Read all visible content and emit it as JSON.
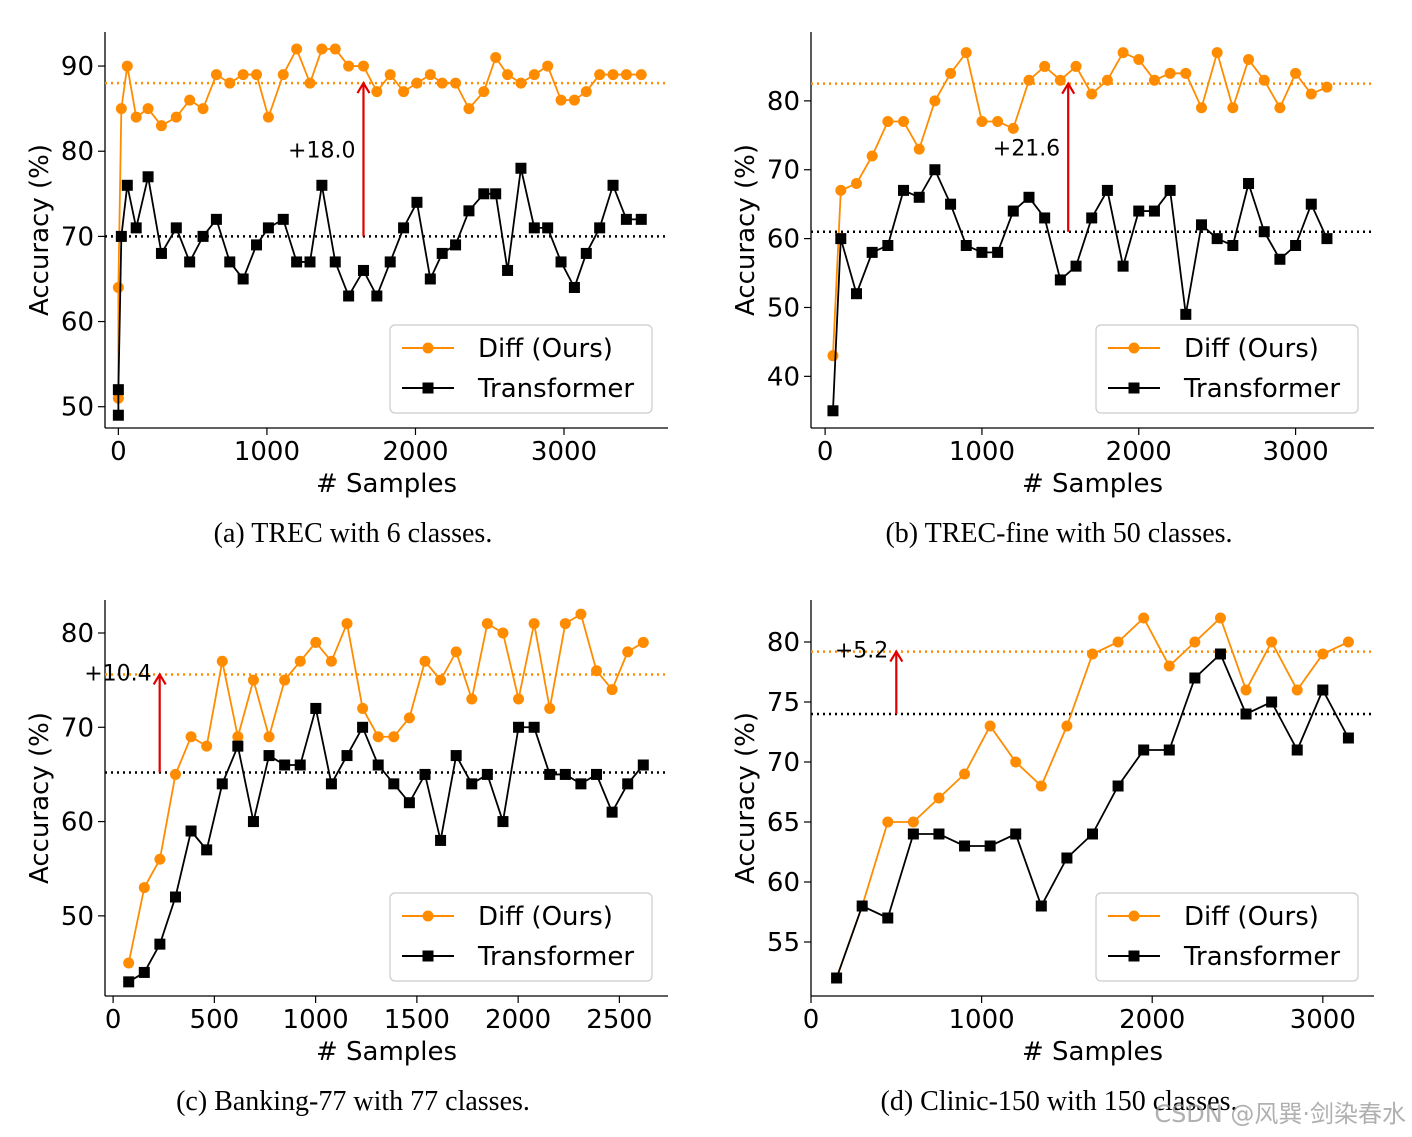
{
  "watermark": "CSDN @风巽·剑染春水",
  "series_colors": {
    "diff": "#ff8c00",
    "transformer": "#000000",
    "arrow": "#e00000"
  },
  "chart_data": [
    {
      "type": "line",
      "caption": "(a) TREC with 6 classes.",
      "xlabel": "# Samples",
      "ylabel": "Accuracy (%)",
      "xlim": [
        -90,
        3700
      ],
      "ylim": [
        47.5,
        94
      ],
      "xticks": [
        0,
        1000,
        2000,
        3000
      ],
      "yticks": [
        50,
        60,
        70,
        80,
        90
      ],
      "hlines": {
        "diff": 88,
        "transformer": 70
      },
      "arrow": {
        "x": 1650,
        "y_from": 70,
        "y_to": 88,
        "label": "+18.0"
      },
      "legend": [
        "Diff (Ours)",
        "Transformer"
      ],
      "series": [
        {
          "name": "Diff (Ours)",
          "x": [
            0,
            0,
            20,
            60,
            120,
            200,
            290,
            390,
            480,
            570,
            660,
            750,
            840,
            930,
            1010,
            1110,
            1200,
            1290,
            1370,
            1460,
            1550,
            1650,
            1740,
            1830,
            1920,
            2010,
            2100,
            2180,
            2270,
            2360,
            2460,
            2540,
            2620,
            2710,
            2800,
            2890,
            2980,
            3070,
            3150,
            3240,
            3330,
            3420,
            3520
          ],
          "values": [
            51,
            64,
            85,
            90,
            84,
            85,
            83,
            84,
            86,
            85,
            89,
            88,
            89,
            89,
            84,
            89,
            92,
            88,
            92,
            92,
            90,
            90,
            87,
            89,
            87,
            88,
            89,
            88,
            88,
            85,
            87,
            91,
            89,
            88,
            89,
            90,
            86,
            86,
            87,
            89,
            89,
            89,
            89
          ]
        },
        {
          "name": "Transformer",
          "x": [
            0,
            0,
            20,
            60,
            120,
            200,
            290,
            390,
            480,
            570,
            660,
            750,
            840,
            930,
            1010,
            1110,
            1200,
            1290,
            1370,
            1460,
            1550,
            1650,
            1740,
            1830,
            1920,
            2010,
            2100,
            2180,
            2270,
            2360,
            2460,
            2540,
            2620,
            2710,
            2800,
            2890,
            2980,
            3070,
            3150,
            3240,
            3330,
            3420,
            3520
          ],
          "values": [
            49,
            52,
            70,
            76,
            71,
            77,
            68,
            71,
            67,
            70,
            72,
            67,
            65,
            69,
            71,
            72,
            67,
            67,
            76,
            67,
            63,
            66,
            63,
            67,
            71,
            74,
            65,
            68,
            69,
            73,
            75,
            75,
            66,
            78,
            71,
            71,
            67,
            64,
            68,
            71,
            76,
            72,
            72
          ]
        }
      ]
    },
    {
      "type": "line",
      "caption": "(b) TREC-fine with 50 classes.",
      "xlabel": "# Samples",
      "ylabel": "Accuracy (%)",
      "xlim": [
        -90,
        3500
      ],
      "ylim": [
        32.5,
        90
      ],
      "xticks": [
        0,
        1000,
        2000,
        3000
      ],
      "yticks": [
        40,
        50,
        60,
        70,
        80
      ],
      "hlines": {
        "diff": 82.5,
        "transformer": 61
      },
      "arrow": {
        "x": 1550,
        "y_from": 61,
        "y_to": 82.5,
        "label": "+21.6"
      },
      "legend": [
        "Diff (Ours)",
        "Transformer"
      ],
      "series": [
        {
          "name": "Diff (Ours)",
          "x": [
            50,
            100,
            200,
            300,
            400,
            500,
            600,
            700,
            800,
            900,
            1000,
            1100,
            1200,
            1300,
            1400,
            1500,
            1600,
            1700,
            1800,
            1900,
            2000,
            2100,
            2200,
            2300,
            2400,
            2500,
            2600,
            2700,
            2800,
            2900,
            3000,
            3100,
            3200
          ],
          "values": [
            43,
            67,
            68,
            72,
            77,
            77,
            73,
            80,
            84,
            87,
            77,
            77,
            76,
            83,
            85,
            83,
            85,
            81,
            83,
            87,
            86,
            83,
            84,
            84,
            79,
            87,
            79,
            86,
            83,
            79,
            84,
            81,
            82
          ]
        },
        {
          "name": "Transformer",
          "x": [
            50,
            100,
            200,
            300,
            400,
            500,
            600,
            700,
            800,
            900,
            1000,
            1100,
            1200,
            1300,
            1400,
            1500,
            1600,
            1700,
            1800,
            1900,
            2000,
            2100,
            2200,
            2300,
            2400,
            2500,
            2600,
            2700,
            2800,
            2900,
            3000,
            3100,
            3200
          ],
          "values": [
            35,
            60,
            52,
            58,
            59,
            67,
            66,
            70,
            65,
            59,
            58,
            58,
            64,
            66,
            63,
            54,
            56,
            63,
            67,
            56,
            64,
            64,
            67,
            49,
            62,
            60,
            59,
            68,
            61,
            57,
            59,
            65,
            60
          ]
        }
      ]
    },
    {
      "type": "line",
      "caption": "(c) Banking-77 with 77 classes.",
      "xlabel": "# Samples",
      "ylabel": "Accuracy (%)",
      "xlim": [
        -40,
        2740
      ],
      "ylim": [
        41.5,
        83.5
      ],
      "xticks": [
        0,
        500,
        1000,
        1500,
        2000,
        2500
      ],
      "yticks": [
        50,
        60,
        70,
        80
      ],
      "hlines": {
        "diff": 75.6,
        "transformer": 65.2
      },
      "arrow": {
        "x": 230,
        "y_from": 65.2,
        "y_to": 75.6,
        "label": "+10.4"
      },
      "legend": [
        "Diff (Ours)",
        "Transformer"
      ],
      "series": [
        {
          "name": "Diff (Ours)",
          "x": [
            77,
            154,
            231,
            308,
            385,
            462,
            539,
            616,
            693,
            770,
            847,
            924,
            1001,
            1078,
            1155,
            1232,
            1309,
            1386,
            1463,
            1540,
            1617,
            1694,
            1771,
            1848,
            1925,
            2002,
            2079,
            2156,
            2233,
            2310,
            2387,
            2464,
            2541,
            2618
          ],
          "values": [
            45,
            53,
            56,
            65,
            69,
            68,
            77,
            69,
            75,
            69,
            75,
            77,
            79,
            77,
            81,
            72,
            69,
            69,
            71,
            77,
            75,
            78,
            73,
            81,
            80,
            73,
            81,
            72,
            81,
            82,
            76,
            74,
            78,
            79
          ]
        },
        {
          "name": "Transformer",
          "x": [
            77,
            154,
            231,
            308,
            385,
            462,
            539,
            616,
            693,
            770,
            847,
            924,
            1001,
            1078,
            1155,
            1232,
            1309,
            1386,
            1463,
            1540,
            1617,
            1694,
            1771,
            1848,
            1925,
            2002,
            2079,
            2156,
            2233,
            2310,
            2387,
            2464,
            2541,
            2618
          ],
          "values": [
            43,
            44,
            47,
            52,
            59,
            57,
            64,
            68,
            60,
            67,
            66,
            66,
            72,
            64,
            67,
            70,
            66,
            64,
            62,
            65,
            58,
            67,
            64,
            65,
            60,
            70,
            70,
            65,
            65,
            64,
            65,
            61,
            64,
            66
          ]
        }
      ]
    },
    {
      "type": "line",
      "caption": "(d) Clinic-150 with 150 classes.",
      "xlabel": "# Samples",
      "ylabel": "Accuracy (%)",
      "xlim": [
        0,
        3300
      ],
      "ylim": [
        50.5,
        83.5
      ],
      "xticks": [
        0,
        1000,
        2000,
        3000
      ],
      "yticks": [
        55,
        60,
        65,
        70,
        75,
        80
      ],
      "hlines": {
        "diff": 79.2,
        "transformer": 74
      },
      "arrow": {
        "x": 500,
        "y_from": 74,
        "y_to": 79.2,
        "label": "+5.2"
      },
      "legend": [
        "Diff (Ours)",
        "Transformer"
      ],
      "series": [
        {
          "name": "Diff (Ours)",
          "x": [
            150,
            300,
            450,
            600,
            750,
            900,
            1050,
            1200,
            1350,
            1500,
            1650,
            1800,
            1950,
            2100,
            2250,
            2400,
            2550,
            2700,
            2850,
            3000,
            3150
          ],
          "values": [
            52,
            58,
            65,
            65,
            67,
            69,
            73,
            70,
            68,
            73,
            79,
            80,
            82,
            78,
            80,
            82,
            76,
            80,
            76,
            79,
            80
          ]
        },
        {
          "name": "Transformer",
          "x": [
            150,
            300,
            450,
            600,
            750,
            900,
            1050,
            1200,
            1350,
            1500,
            1650,
            1800,
            1950,
            2100,
            2250,
            2400,
            2550,
            2700,
            2850,
            3000,
            3150
          ],
          "values": [
            52,
            58,
            57,
            64,
            64,
            63,
            63,
            64,
            58,
            62,
            64,
            68,
            71,
            71,
            77,
            79,
            74,
            75,
            71,
            76,
            72
          ]
        }
      ]
    }
  ]
}
